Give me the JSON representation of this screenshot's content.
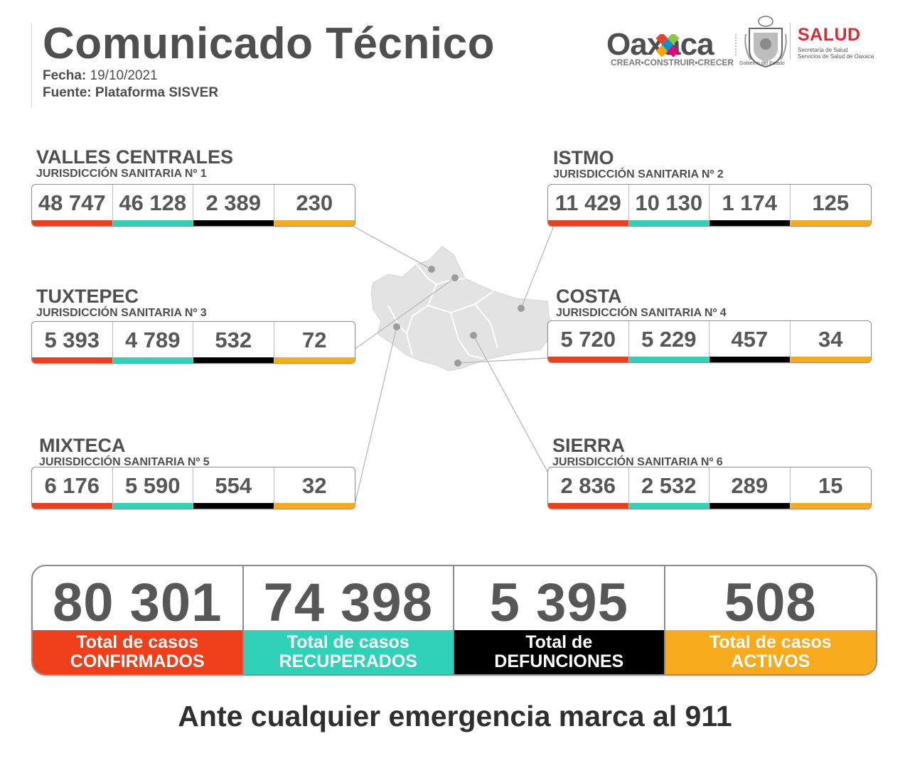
{
  "header": {
    "title": "Comunicado Técnico",
    "fecha_label": "Fecha:",
    "fecha_value": "19/10/2021",
    "fuente_label": "Fuente:",
    "fuente_value": "Plataforma SISVER"
  },
  "logos": {
    "oaxaca_word": "Oaxaca",
    "oaxaca_tagline": "CREAR•CONSTRUIR•CRECER",
    "seal_caption": "Gobierno del Estado",
    "salud_title": "SALUD",
    "salud_sub_1": "Secretaría de Salud",
    "salud_sub_2": "Servicios de Salud de Oaxaca"
  },
  "colors": {
    "confirmados": "#ef3e1a",
    "recuperados": "#2fd1b8",
    "defunciones": "#000000",
    "activos": "#f6aa1c"
  },
  "regions": [
    {
      "name": "VALLES CENTRALES",
      "jurisdiction": "JURISDICCIÓN SANITARIA Nº 1",
      "values": [
        "48 747",
        "46 128",
        "2 389",
        "230"
      ]
    },
    {
      "name": "ISTMO",
      "jurisdiction": "JURISDICCIÓN SANITARIA Nº 2",
      "values": [
        "11 429",
        "10 130",
        "1 174",
        "125"
      ]
    },
    {
      "name": "TUXTEPEC",
      "jurisdiction": "JURISDICCIÓN SANITARIA Nº 3",
      "values": [
        "5 393",
        "4 789",
        "532",
        "72"
      ]
    },
    {
      "name": "COSTA",
      "jurisdiction": "JURISDICCIÓN SANITARIA Nº 4",
      "values": [
        "5 720",
        "5 229",
        "457",
        "34"
      ]
    },
    {
      "name": "MIXTECA",
      "jurisdiction": "JURISDICCIÓN SANITARIA Nº 5",
      "values": [
        "6 176",
        "5 590",
        "554",
        "32"
      ]
    },
    {
      "name": "SIERRA",
      "jurisdiction": "JURISDICCIÓN SANITARIA Nº 6",
      "values": [
        "2 836",
        "2 532",
        "289",
        "15"
      ]
    }
  ],
  "totals": [
    {
      "value": "80 301",
      "label_1": "Total de casos",
      "label_2": "CONFIRMADOS"
    },
    {
      "value": "74 398",
      "label_1": "Total de casos",
      "label_2": "RECUPERADOS"
    },
    {
      "value": "5 395",
      "label_1": "Total de",
      "label_2": "DEFUNCIONES"
    },
    {
      "value": "508",
      "label_1": "Total de casos",
      "label_2": "ACTIVOS"
    }
  ],
  "footer": {
    "text": "Ante cualquier emergencia marca al 911"
  }
}
